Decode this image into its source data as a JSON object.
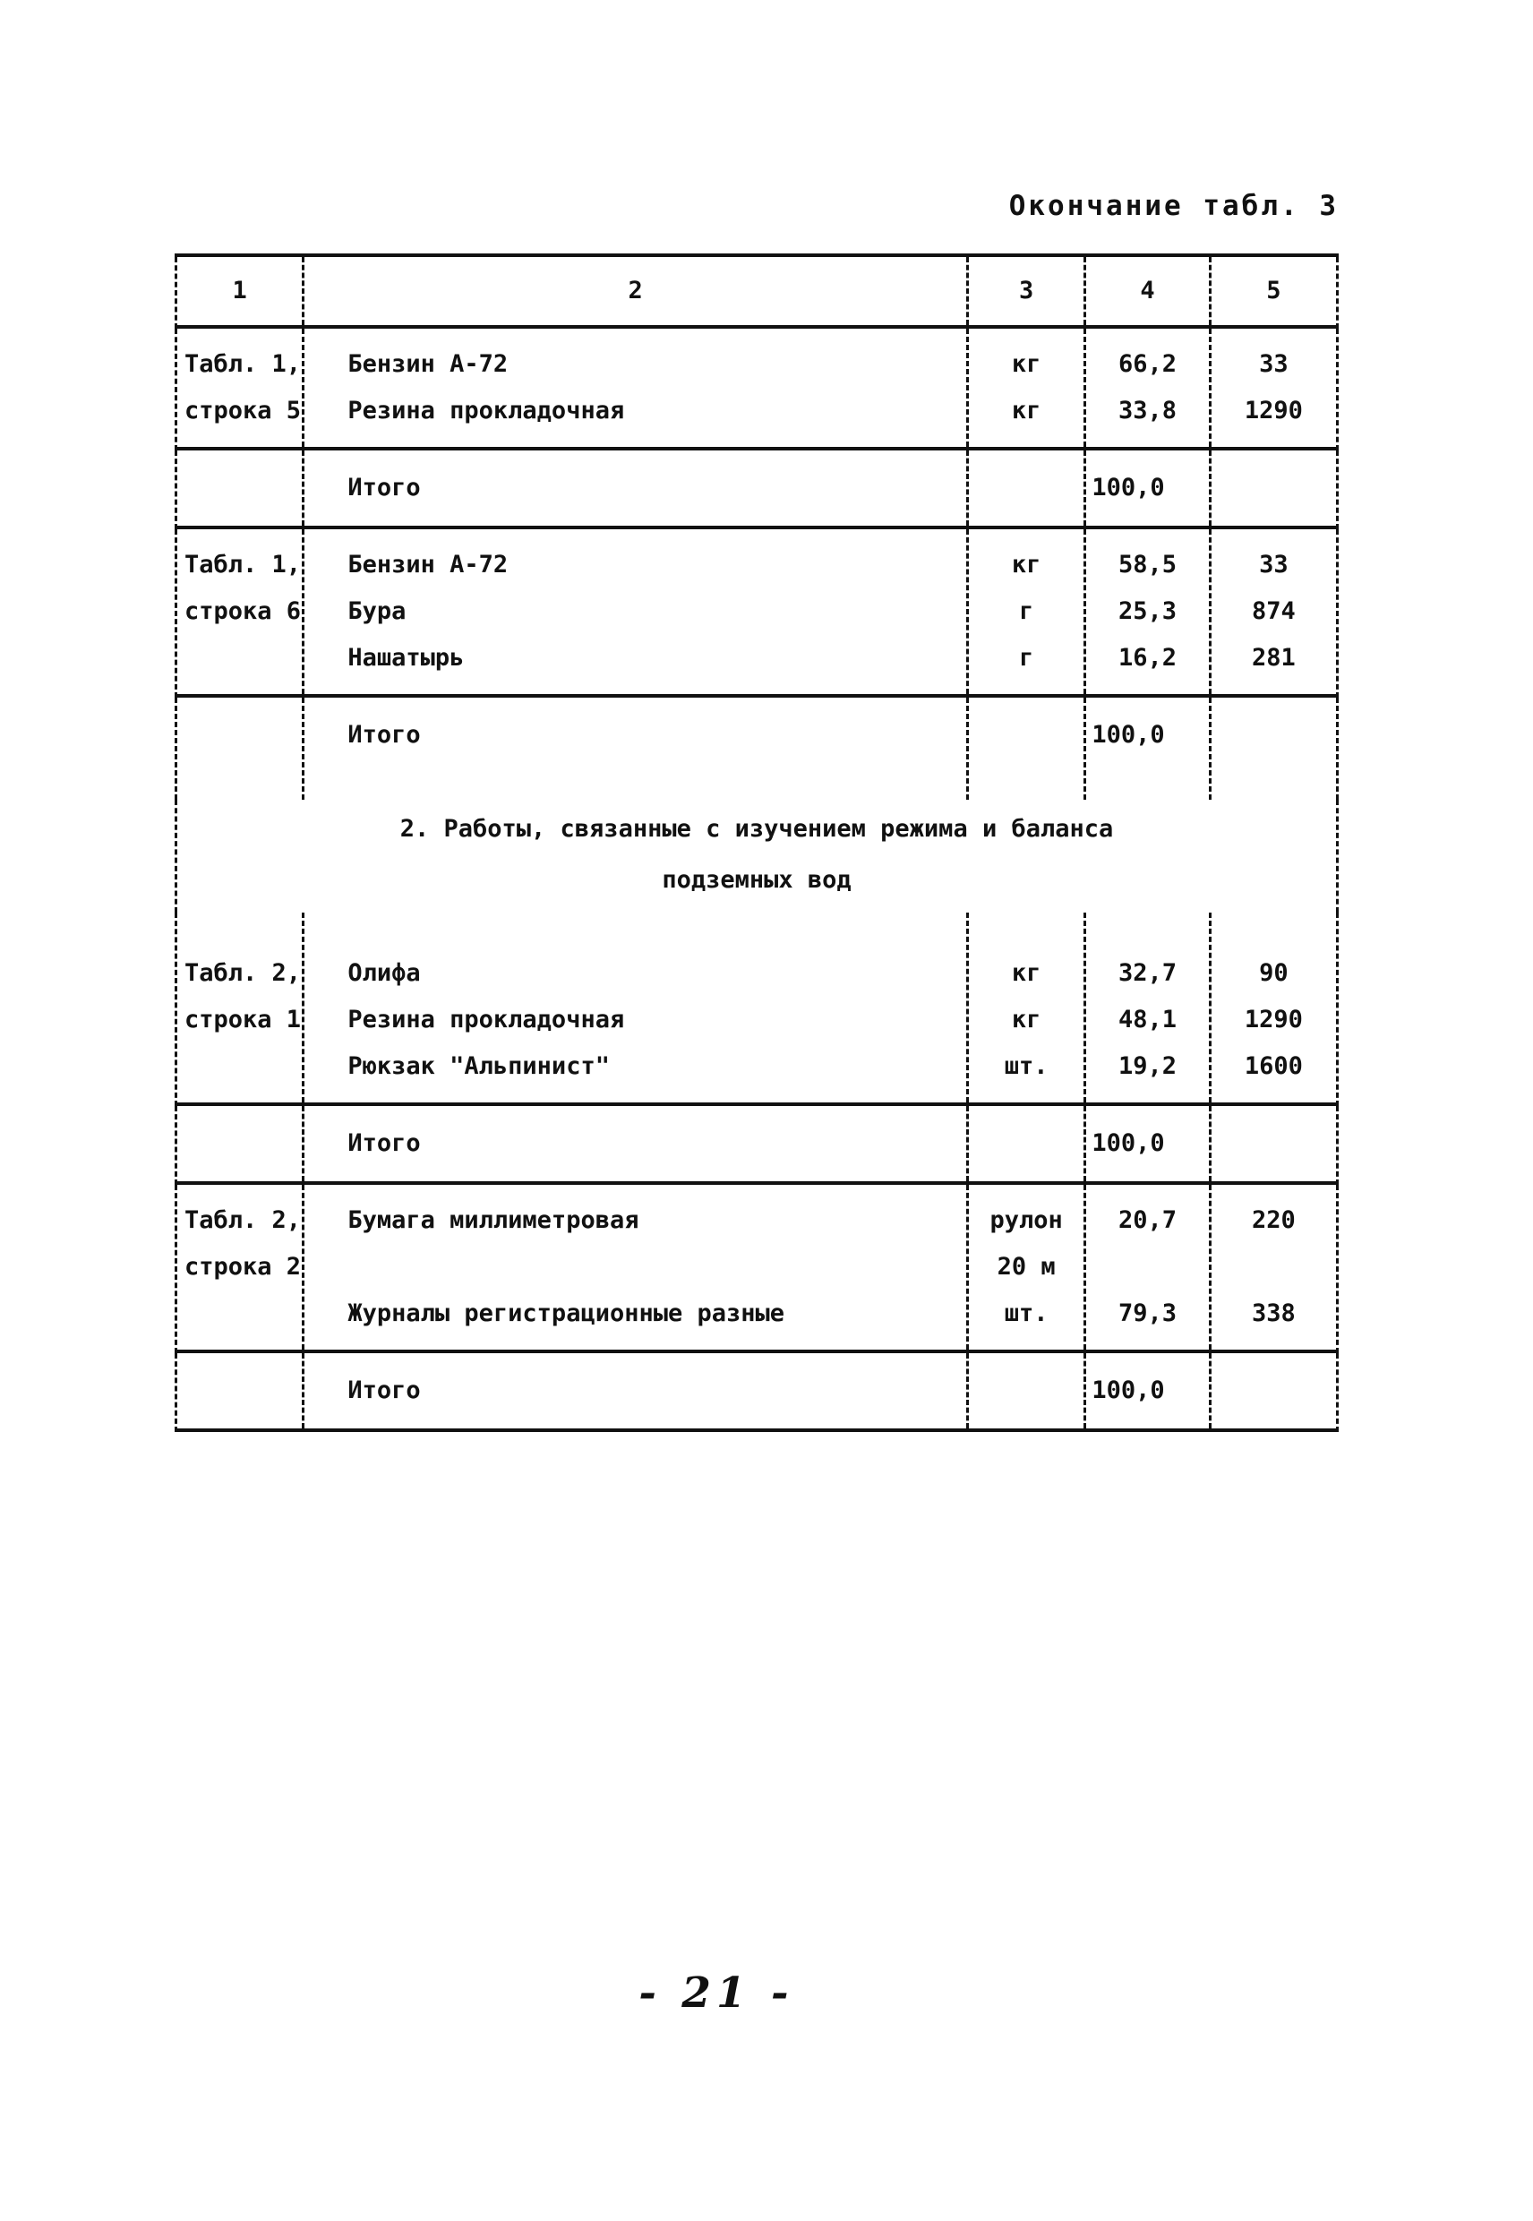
{
  "page": {
    "caption": "Окончание табл. 3",
    "page_number": "- 21 -"
  },
  "table": {
    "column_headers": [
      "1",
      "2",
      "3",
      "4",
      "5"
    ],
    "groups": [
      {
        "type": "header",
        "cols": [
          [
            "1"
          ],
          [
            "2"
          ],
          [
            "3"
          ],
          [
            "4"
          ],
          [
            "5"
          ]
        ]
      },
      {
        "type": "data",
        "cols": [
          [
            "Табл. 1,",
            "строка 5"
          ],
          [
            "Бензин А-72",
            "Резина прокладочная"
          ],
          [
            "кг",
            "кг"
          ],
          [
            "66,2",
            "33,8"
          ],
          [
            "33",
            "1290"
          ]
        ]
      },
      {
        "type": "total",
        "cols": [
          [],
          [
            "Итого"
          ],
          [],
          [
            "100,0"
          ],
          []
        ]
      },
      {
        "type": "data",
        "cols": [
          [
            "Табл. 1,",
            "строка 6"
          ],
          [
            "Бензин А-72",
            "Бура",
            "Нашатырь"
          ],
          [
            "кг",
            "г",
            "г"
          ],
          [
            "58,5",
            "25,3",
            "16,2"
          ],
          [
            "33",
            "874",
            "281"
          ]
        ]
      },
      {
        "type": "total",
        "open_bottom": true,
        "cols": [
          [],
          [
            "Итого"
          ],
          [],
          [
            "100,0"
          ],
          []
        ]
      },
      {
        "type": "section",
        "lines": [
          "2. Работы, связанные с изучением режима и баланса",
          "подземных вод"
        ]
      },
      {
        "type": "data",
        "flush_top": true,
        "cols": [
          [
            "Табл. 2,",
            "строка 1"
          ],
          [
            "Олифа",
            "Резина прокладочная",
            "Рюкзак \"Альпинист\""
          ],
          [
            "кг",
            "кг",
            "шт."
          ],
          [
            "32,7",
            "48,1",
            "19,2"
          ],
          [
            "90",
            "1290",
            "1600"
          ]
        ]
      },
      {
        "type": "total",
        "cols": [
          [],
          [
            "Итого"
          ],
          [],
          [
            "100,0"
          ],
          []
        ]
      },
      {
        "type": "data",
        "cols": [
          [
            "Табл. 2,",
            "строка 2"
          ],
          [
            "Бумага миллиметровая",
            "",
            "Журналы регистрационные разные"
          ],
          [
            "рулон",
            "20 м",
            "шт."
          ],
          [
            "20,7",
            "",
            "79,3"
          ],
          [
            "220",
            "",
            "338"
          ]
        ]
      },
      {
        "type": "total",
        "cols": [
          [],
          [
            "Итого"
          ],
          [],
          [
            "100,0"
          ],
          []
        ]
      }
    ]
  }
}
